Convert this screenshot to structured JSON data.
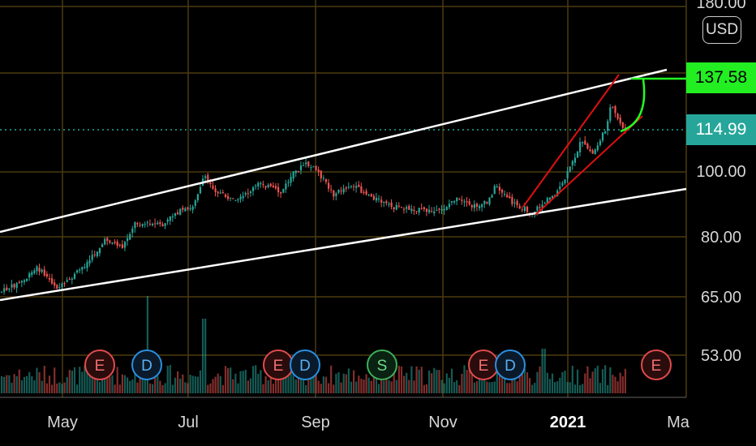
{
  "currency": "USD",
  "price_axis": {
    "labels": [
      "180.00",
      "100.00",
      "80.00",
      "65.00",
      "53.00"
    ],
    "current_price": "114.99",
    "target_price": "137.58"
  },
  "time_axis": {
    "labels": [
      "May",
      "Jul",
      "Sep",
      "Nov",
      "2021",
      "Ma"
    ]
  },
  "events": [
    "E",
    "D",
    "E",
    "D",
    "S",
    "E",
    "D",
    "E"
  ],
  "colors": {
    "background": "#000000",
    "grid": "#4a3a10",
    "candle_up": "#26a69a",
    "candle_down": "#ef5350",
    "channel": "#ffffff",
    "wedge": "#e01010",
    "target": "#22ff22",
    "current_price_tag": "#26a69a"
  }
}
